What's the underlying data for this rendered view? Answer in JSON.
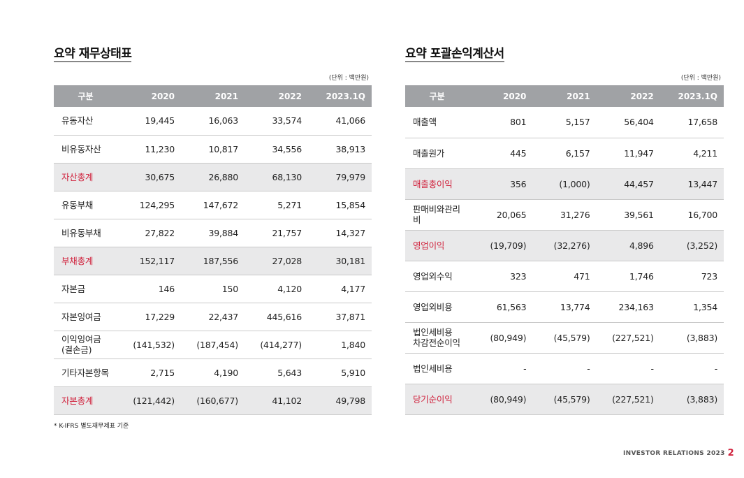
{
  "left": {
    "title": "요약 재무상태표",
    "unit": "(단위 : 백만원)",
    "headers": [
      "구분",
      "2020",
      "2021",
      "2022",
      "2023.1Q"
    ],
    "rows": [
      {
        "label": "유동자산",
        "values": [
          "19,445",
          "16,063",
          "33,574",
          "41,066"
        ],
        "highlight": false
      },
      {
        "label": "비유동자산",
        "values": [
          "11,230",
          "10,817",
          "34,556",
          "38,913"
        ],
        "highlight": false
      },
      {
        "label": "자산총계",
        "values": [
          "30,675",
          "26,880",
          "68,130",
          "79,979"
        ],
        "highlight": true
      },
      {
        "label": "유동부채",
        "values": [
          "124,295",
          "147,672",
          "5,271",
          "15,854"
        ],
        "highlight": false
      },
      {
        "label": "비유동부채",
        "values": [
          "27,822",
          "39,884",
          "21,757",
          "14,327"
        ],
        "highlight": false
      },
      {
        "label": "부채총계",
        "values": [
          "152,117",
          "187,556",
          "27,028",
          "30,181"
        ],
        "highlight": true
      },
      {
        "label": "자본금",
        "values": [
          "146",
          "150",
          "4,120",
          "4,177"
        ],
        "highlight": false
      },
      {
        "label": "자본잉여금",
        "values": [
          "17,229",
          "22,437",
          "445,616",
          "37,871"
        ],
        "highlight": false
      },
      {
        "label": "이익잉여금\n(결손금)",
        "values": [
          "(141,532)",
          "(187,454)",
          "(414,277)",
          "1,840"
        ],
        "highlight": false
      },
      {
        "label": "기타자본항목",
        "values": [
          "2,715",
          "4,190",
          "5,643",
          "5,910"
        ],
        "highlight": false
      },
      {
        "label": "자본총계",
        "values": [
          "(121,442)",
          "(160,677)",
          "41,102",
          "49,798"
        ],
        "highlight": true
      }
    ]
  },
  "right": {
    "title": "요약 포괄손익계산서",
    "unit": "(단위 : 백만원)",
    "headers": [
      "구분",
      "2020",
      "2021",
      "2022",
      "2023.1Q"
    ],
    "rows": [
      {
        "label": "매출액",
        "values": [
          "801",
          "5,157",
          "56,404",
          "17,658"
        ],
        "highlight": false
      },
      {
        "label": "매출원가",
        "values": [
          "445",
          "6,157",
          "11,947",
          "4,211"
        ],
        "highlight": false
      },
      {
        "label": "매출총이익",
        "values": [
          "356",
          "(1,000)",
          "44,457",
          "13,447"
        ],
        "highlight": true
      },
      {
        "label": "판매비와관리비",
        "values": [
          "20,065",
          "31,276",
          "39,561",
          "16,700"
        ],
        "highlight": false
      },
      {
        "label": "영업이익",
        "values": [
          "(19,709)",
          "(32,276)",
          "4,896",
          "(3,252)"
        ],
        "highlight": true
      },
      {
        "label": "영업외수익",
        "values": [
          "323",
          "471",
          "1,746",
          "723"
        ],
        "highlight": false
      },
      {
        "label": "영업외비용",
        "values": [
          "61,563",
          "13,774",
          "234,163",
          "1,354"
        ],
        "highlight": false
      },
      {
        "label": "법인세비용\n차감전순이익",
        "values": [
          "(80,949)",
          "(45,579)",
          "(227,521)",
          "(3,883)"
        ],
        "highlight": false
      },
      {
        "label": "법인세비용",
        "values": [
          "-",
          "-",
          "-",
          "-"
        ],
        "highlight": false
      },
      {
        "label": "당기순이익",
        "values": [
          "(80,949)",
          "(45,579)",
          "(227,521)",
          "(3,883)"
        ],
        "highlight": true
      }
    ]
  },
  "footnote": "* K-IFRS 별도재무제표 기준",
  "footer": {
    "text": "INVESTOR RELATIONS 2023",
    "page": "2"
  },
  "colors": {
    "accent": "#d0213c",
    "header_bg": "#a0a2a5",
    "highlight_bg": "#e9e9ea"
  }
}
